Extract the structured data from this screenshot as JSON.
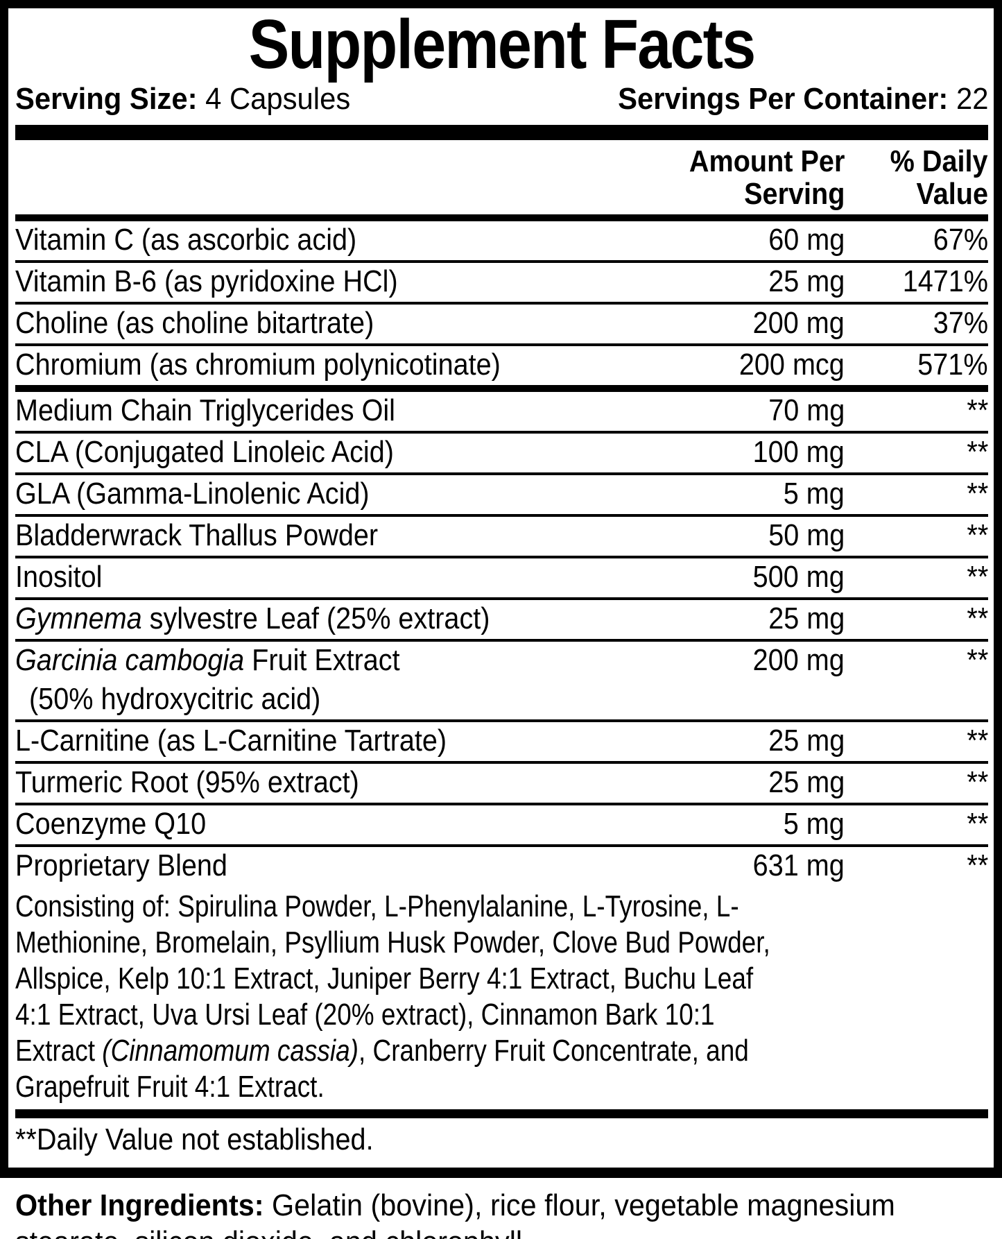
{
  "colors": {
    "ink": "#000000",
    "paper": "#ffffff"
  },
  "label": {
    "title": "Supplement Facts",
    "serving_size_label": "Serving Size:",
    "serving_size_value": "4 Capsules",
    "servings_per_container_label": "Servings Per Container:",
    "servings_per_container_value": "22"
  },
  "header": {
    "amount_lines": [
      "Amount Per",
      "Serving"
    ],
    "dv_lines": [
      "% Daily",
      "Value"
    ]
  },
  "rows": [
    {
      "name_segments": [
        {
          "text": "Vitamin C (as ascorbic acid)"
        }
      ],
      "amount": "60 mg",
      "daily_value": "67%",
      "divider_after": "thin"
    },
    {
      "name_segments": [
        {
          "text": "Vitamin B-6 (as pyridoxine HCl)"
        }
      ],
      "amount": "25 mg",
      "daily_value": "1471%",
      "divider_after": "thin"
    },
    {
      "name_segments": [
        {
          "text": "Choline (as choline bitartrate)"
        }
      ],
      "amount": "200 mg",
      "daily_value": "37%",
      "divider_after": "thin"
    },
    {
      "name_segments": [
        {
          "text": "Chromium (as chromium polynicotinate)"
        }
      ],
      "amount": "200 mcg",
      "daily_value": "571%",
      "divider_after": "thick"
    },
    {
      "name_segments": [
        {
          "text": "Medium Chain Triglycerides Oil"
        }
      ],
      "amount": "70 mg",
      "daily_value": "**",
      "divider_after": "thin"
    },
    {
      "name_segments": [
        {
          "text": "CLA (Conjugated Linoleic Acid)"
        }
      ],
      "amount": "100 mg",
      "daily_value": "**",
      "divider_after": "thin"
    },
    {
      "name_segments": [
        {
          "text": "GLA (Gamma-Linolenic Acid)"
        }
      ],
      "amount": "5 mg",
      "daily_value": "**",
      "divider_after": "thin"
    },
    {
      "name_segments": [
        {
          "text": "Bladderwrack Thallus Powder"
        }
      ],
      "amount": "50 mg",
      "daily_value": "**",
      "divider_after": "thin"
    },
    {
      "name_segments": [
        {
          "text": "Inositol"
        }
      ],
      "amount": "500 mg",
      "daily_value": "**",
      "divider_after": "thin"
    },
    {
      "name_segments": [
        {
          "text": "Gymnema",
          "italic": true
        },
        {
          "text": " sylvestre Leaf (25% extract)"
        }
      ],
      "amount": "25 mg",
      "daily_value": "**",
      "divider_after": "thin"
    },
    {
      "name_segments": [
        {
          "text": "Garcinia cambogia",
          "italic": true
        },
        {
          "text": " Fruit Extract"
        }
      ],
      "name_line2": "(50% hydroxycitric acid)",
      "amount": "200 mg",
      "daily_value": "**",
      "divider_after": "thin"
    },
    {
      "name_segments": [
        {
          "text": "L-Carnitine (as L-Carnitine Tartrate)"
        }
      ],
      "amount": "25 mg",
      "daily_value": "**",
      "divider_after": "thin"
    },
    {
      "name_segments": [
        {
          "text": "Turmeric Root (95% extract)"
        }
      ],
      "amount": "25 mg",
      "daily_value": "**",
      "divider_after": "thin"
    },
    {
      "name_segments": [
        {
          "text": "Coenzyme Q10"
        }
      ],
      "amount": "5 mg",
      "daily_value": "**",
      "divider_after": "thin"
    },
    {
      "name_segments": [
        {
          "text": "Proprietary Blend"
        }
      ],
      "amount": "631 mg",
      "daily_value": "**",
      "divider_after": "none",
      "details_segments": [
        {
          "text": "Consisting of: Spirulina Powder, L-Phenylalanine, L-Tyrosine, L-Methionine, Bromelain, Psyllium Husk Powder, Clove Bud Powder, Allspice, Kelp 10:1 Extract, Juniper Berry 4:1 Extract, Buchu Leaf 4:1 Extract, Uva Ursi Leaf (20% extract), Cinnamon Bark 10:1 Extract "
        },
        {
          "text": "(Cinnamomum cassia)",
          "italic": true
        },
        {
          "text": ", Cranberry Fruit Concentrate, and Grapefruit Fruit 4:1 Extract."
        }
      ]
    }
  ],
  "footnote": {
    "text": "**Daily Value not established."
  },
  "other_ingredients": {
    "label": "Other Ingredients:",
    "text": "Gelatin (bovine), rice flour, vegetable magnesium stearate, silicon dioxide, and chlorophyll."
  }
}
